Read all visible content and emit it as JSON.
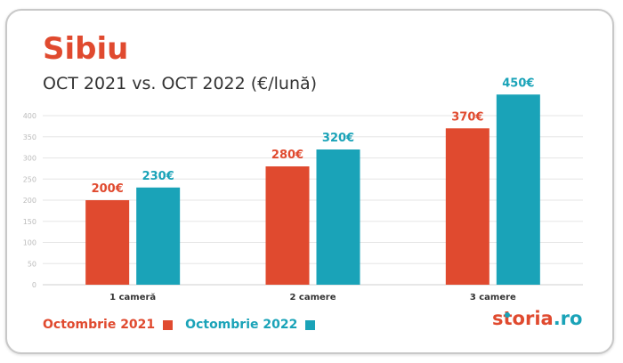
{
  "header": {
    "title": "Sibiu",
    "subtitle": "OCT 2021 vs. OCT 2022 (€/lună)"
  },
  "legend": {
    "items": [
      {
        "label": "Octombrie 2021",
        "color": "#e04a2f"
      },
      {
        "label": "Octombrie 2022",
        "color": "#1aa3b8"
      }
    ]
  },
  "brand": {
    "name_main": "storia",
    "name_suffix": ".ro",
    "main_color": "#e04a2f",
    "suffix_color": "#1aa3b8"
  },
  "colors": {
    "accent_red": "#e04a2f",
    "accent_teal": "#1aa3b8",
    "grid": "#e6e6e6",
    "tick_text": "#bbbbbb"
  },
  "chart_data": {
    "type": "bar",
    "title": "Sibiu",
    "subtitle": "OCT 2021 vs. OCT 2022 (€/lună)",
    "categories": [
      "1 cameră",
      "2 camere",
      "3 camere"
    ],
    "series": [
      {
        "name": "Octombrie 2021",
        "color": "#e04a2f",
        "values": [
          200,
          280,
          370
        ],
        "labels": [
          "200€",
          "280€",
          "370€"
        ]
      },
      {
        "name": "Octombrie 2022",
        "color": "#1aa3b8",
        "values": [
          230,
          320,
          450
        ],
        "labels": [
          "230€",
          "320€",
          "450€"
        ]
      }
    ],
    "yticks": [
      "0",
      "50",
      "100",
      "150",
      "200",
      "250",
      "300",
      "350",
      "400"
    ],
    "ylim": [
      0,
      450
    ],
    "xlabel": "",
    "ylabel": "",
    "grid": true,
    "legend_position": "bottom-left"
  }
}
